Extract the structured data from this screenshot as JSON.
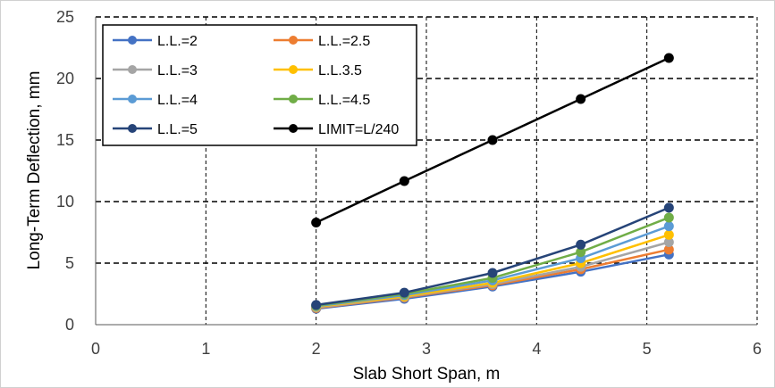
{
  "chart_data": {
    "type": "line",
    "xlabel": "Slab Short Span, m",
    "ylabel": "Long-Term Deflection, mm",
    "xlim": [
      0,
      6
    ],
    "ylim": [
      0,
      25
    ],
    "x_ticks": [
      0,
      1,
      2,
      3,
      4,
      5,
      6
    ],
    "y_ticks": [
      0,
      5,
      10,
      15,
      20,
      25
    ],
    "grid": {
      "vertical": "dashed",
      "horizontal": "dashed"
    },
    "legend_position": "top-left",
    "x": [
      2,
      2.8,
      3.6,
      4.4,
      5.2
    ],
    "series": [
      {
        "name": "L.L.=2",
        "color": "#4472C4",
        "values": [
          1.3,
          2.1,
          3.1,
          4.3,
          5.7
        ]
      },
      {
        "name": "L.L.=2.5",
        "color": "#ED7D31",
        "values": [
          1.35,
          2.2,
          3.2,
          4.5,
          6.1
        ]
      },
      {
        "name": "L.L.=3",
        "color": "#A5A5A5",
        "values": [
          1.4,
          2.25,
          3.3,
          4.7,
          6.7
        ]
      },
      {
        "name": "L.L.3.5",
        "color": "#FFC000",
        "values": [
          1.45,
          2.3,
          3.4,
          5.0,
          7.3
        ]
      },
      {
        "name": "L.L.=4",
        "color": "#5B9BD5",
        "values": [
          1.5,
          2.4,
          3.6,
          5.4,
          8.0
        ]
      },
      {
        "name": "L.L.=4.5",
        "color": "#70AD47",
        "values": [
          1.55,
          2.5,
          3.8,
          5.9,
          8.7
        ]
      },
      {
        "name": "L.L.=5",
        "color": "#264478",
        "values": [
          1.6,
          2.6,
          4.2,
          6.5,
          9.5
        ]
      },
      {
        "name": "LIMIT=L/240",
        "color": "#000000",
        "values": [
          8.3,
          11.67,
          15.0,
          18.33,
          21.67
        ]
      }
    ]
  }
}
